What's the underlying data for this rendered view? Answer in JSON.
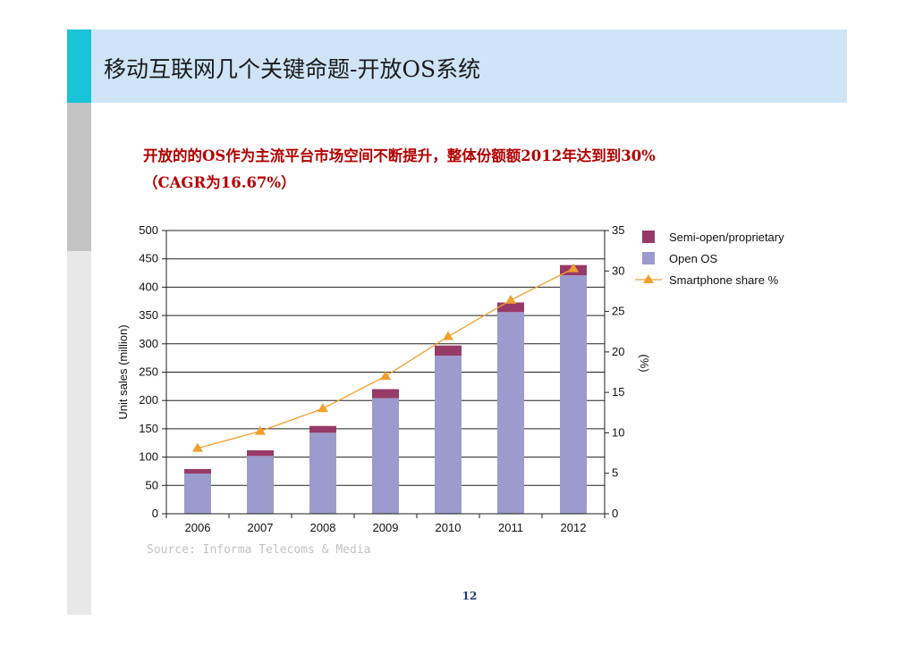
{
  "slide": {
    "title": "移动互联网几个关键命题-开放OS系统",
    "headline_line1": "开放的的OS作为主流平台市场空间不断提升，整体份额额2012年达到到30%",
    "headline_line2": "（CAGR为16.67%）",
    "source": "Source: Informa Telecoms & Media",
    "page_number": "12",
    "colors": {
      "accent": "#19c3d8",
      "header": "#cfe5f7",
      "headline": "#b30000"
    }
  },
  "chart_data": {
    "type": "bar",
    "stacked": true,
    "categories": [
      "2006",
      "2007",
      "2008",
      "2009",
      "2010",
      "2011",
      "2012"
    ],
    "series": [
      {
        "name": "Open OS",
        "kind": "bar",
        "color": "#9b9bcd",
        "values": [
          71,
          102,
          143,
          204,
          279,
          356,
          421
        ]
      },
      {
        "name": "Semi-open/proprietary",
        "kind": "bar",
        "color": "#983a67",
        "values": [
          8,
          10,
          12,
          16,
          18,
          17,
          18
        ]
      },
      {
        "name": "Smartphone share %",
        "kind": "line",
        "axis": "right",
        "color": "#f0a02c",
        "values": [
          8.1,
          10.2,
          13.0,
          17.0,
          21.9,
          26.4,
          30.3
        ]
      }
    ],
    "ylabel": "Unit sales (million)",
    "y2label": "(%)",
    "ylim": [
      0,
      500
    ],
    "yticks": [
      0,
      50,
      100,
      150,
      200,
      250,
      300,
      350,
      400,
      450,
      500
    ],
    "y2lim": [
      0,
      35
    ],
    "y2ticks": [
      0,
      5,
      10,
      15,
      20,
      25,
      30,
      35
    ],
    "grid": true,
    "legend_position": "top-right",
    "legend_order": [
      "Semi-open/proprietary",
      "Open OS",
      "Smartphone share %"
    ]
  }
}
